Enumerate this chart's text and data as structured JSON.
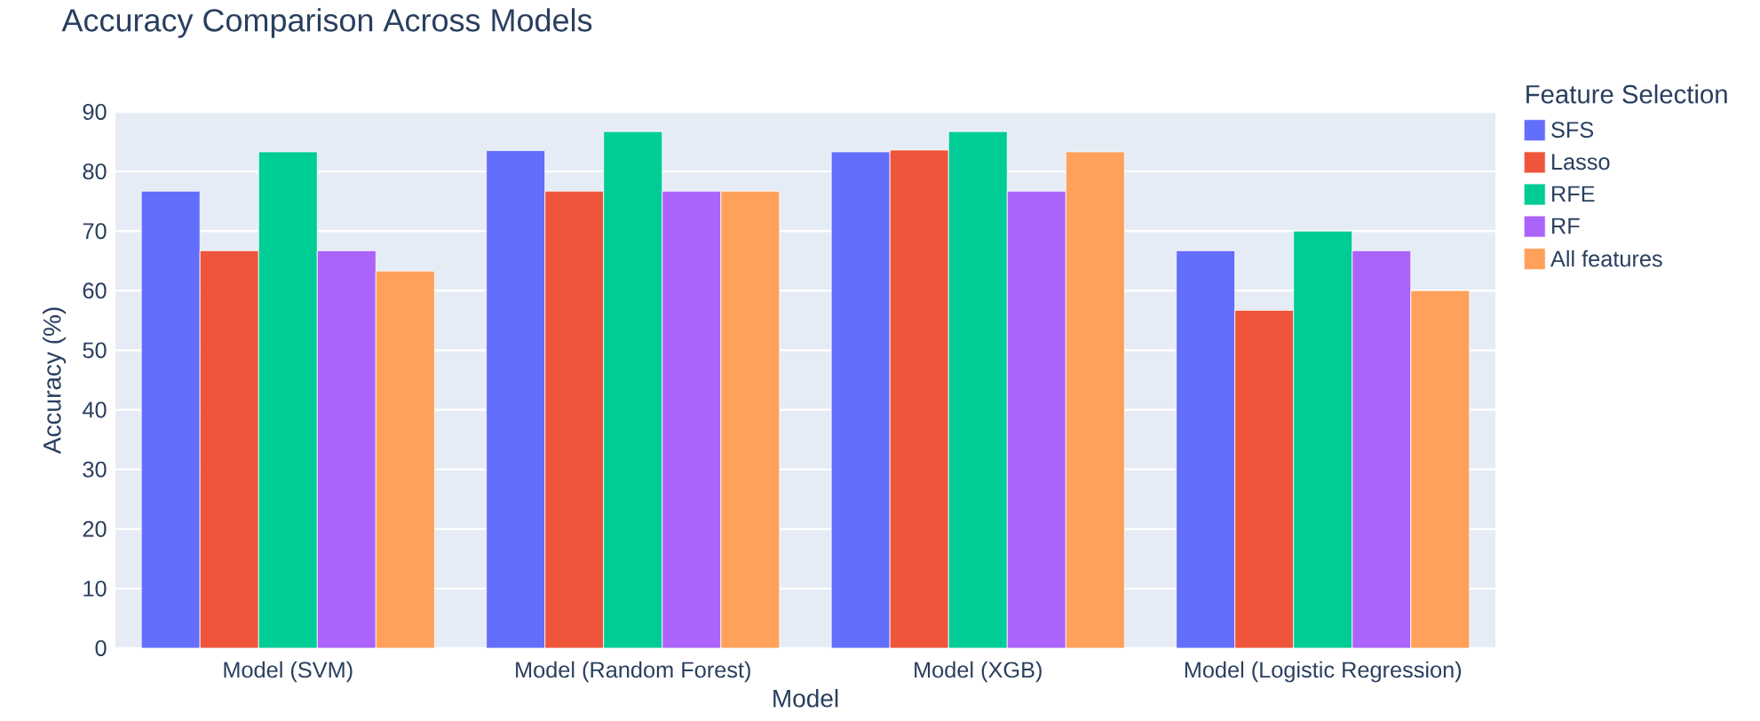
{
  "chart_data": {
    "type": "bar",
    "title": "Accuracy Comparison Across Models",
    "xlabel": "Model",
    "ylabel": "Accuracy (%)",
    "legend_title": "Feature Selection",
    "categories": [
      "Model (SVM)",
      "Model (Random Forest)",
      "Model (XGB)",
      "Model (Logistic Regression)"
    ],
    "series": [
      {
        "name": "SFS",
        "color": "#636efa",
        "values": [
          76.7,
          83.5,
          83.3,
          66.7
        ]
      },
      {
        "name": "Lasso",
        "color": "#ef553b",
        "values": [
          66.7,
          76.7,
          83.6,
          56.7
        ]
      },
      {
        "name": "RFE",
        "color": "#00cc96",
        "values": [
          83.3,
          86.7,
          86.7,
          70.0
        ]
      },
      {
        "name": "RF",
        "color": "#ab63fa",
        "values": [
          66.7,
          76.7,
          76.7,
          66.7
        ]
      },
      {
        "name": "All features",
        "color": "#ffa15a",
        "values": [
          63.3,
          76.7,
          83.3,
          60.0
        ]
      }
    ],
    "ylim": [
      0,
      90
    ],
    "yticks": [
      0,
      10,
      20,
      30,
      40,
      50,
      60,
      70,
      80,
      90
    ],
    "grid": "y",
    "legend": "right"
  }
}
